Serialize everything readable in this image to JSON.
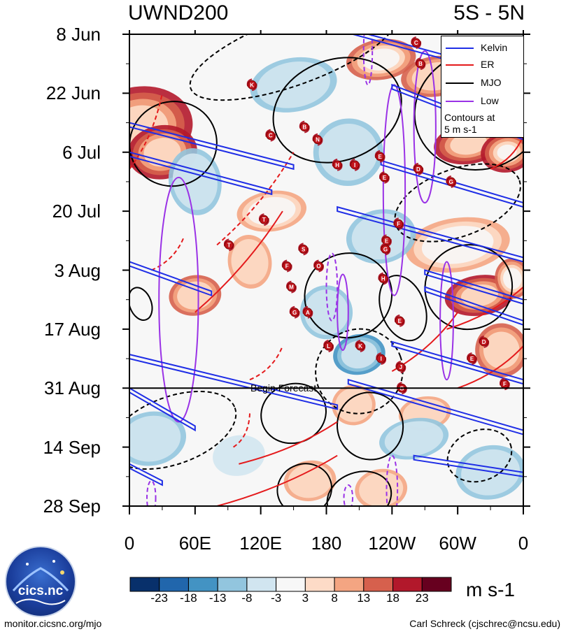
{
  "chart_data": {
    "type": "heatmap",
    "title_left": "UWND200",
    "title_right": "5S - 5N",
    "x_tick_labels": [
      "0",
      "60E",
      "120E",
      "180",
      "120W",
      "60W",
      "0"
    ],
    "x_ticks_deg": [
      0,
      60,
      120,
      180,
      240,
      300,
      360
    ],
    "xlim": [
      0,
      360
    ],
    "y_tick_labels": [
      "8 Jun",
      "22 Jun",
      "6 Jul",
      "20 Jul",
      "3 Aug",
      "17 Aug",
      "31 Aug",
      "14 Sep",
      "28 Sep"
    ],
    "y_ticks_day": [
      0,
      14,
      28,
      42,
      56,
      70,
      84,
      98,
      112
    ],
    "ylim_days": [
      0,
      112
    ],
    "forecast_start_day": 84,
    "forecast_label": "Begin Forecast",
    "colorbar": {
      "labels": [
        "-23",
        "-18",
        "-13",
        "-8",
        "-3",
        "3",
        "8",
        "13",
        "18",
        "23"
      ],
      "colors": [
        "#08306b",
        "#2166ac",
        "#4393c3",
        "#92c5de",
        "#d1e5f0",
        "#f7f7f7",
        "#fddbc7",
        "#f4a582",
        "#d6604d",
        "#b2182b",
        "#67001f"
      ],
      "units": "m s-1"
    },
    "legend": {
      "items": [
        {
          "label": "Kelvin",
          "color": "#1f2ee6"
        },
        {
          "label": "ER",
          "color": "#e41a1c"
        },
        {
          "label": "MJO",
          "color": "#000000"
        },
        {
          "label": "Low",
          "color": "#9a32e6"
        }
      ],
      "note_line1": "Contours at",
      "note_line2": "5 m s-1"
    },
    "wind_features": [
      {
        "lon": 10,
        "day": 22,
        "value": 22,
        "w": 60,
        "h": 12
      },
      {
        "lon": 30,
        "day": 28,
        "value": 20,
        "w": 40,
        "h": 8
      },
      {
        "lon": 60,
        "day": 62,
        "value": 14,
        "w": 30,
        "h": 6
      },
      {
        "lon": 230,
        "day": 6,
        "value": 18,
        "w": 40,
        "h": 6
      },
      {
        "lon": 280,
        "day": 10,
        "value": 16,
        "w": 40,
        "h": 6
      },
      {
        "lon": 310,
        "day": 26,
        "value": 19,
        "w": 40,
        "h": 6
      },
      {
        "lon": 345,
        "day": 28,
        "value": 23,
        "w": 30,
        "h": 6
      },
      {
        "lon": 300,
        "day": 50,
        "value": 13,
        "w": 60,
        "h": 8
      },
      {
        "lon": 320,
        "day": 62,
        "value": 20,
        "w": 40,
        "h": 6
      },
      {
        "lon": 350,
        "day": 58,
        "value": 18,
        "w": 20,
        "h": 6
      },
      {
        "lon": 340,
        "day": 75,
        "value": 14,
        "w": 30,
        "h": 8
      },
      {
        "lon": 130,
        "day": 42,
        "value": 13,
        "w": 40,
        "h": 6
      },
      {
        "lon": 110,
        "day": 54,
        "value": 11,
        "w": 25,
        "h": 8
      },
      {
        "lon": 205,
        "day": 88,
        "value": 12,
        "w": 25,
        "h": 6
      },
      {
        "lon": 270,
        "day": 90,
        "value": 10,
        "w": 30,
        "h": 5
      },
      {
        "lon": 165,
        "day": 106,
        "value": 12,
        "w": 30,
        "h": 6
      },
      {
        "lon": 230,
        "day": 108,
        "value": 11,
        "w": 30,
        "h": 6
      },
      {
        "lon": 150,
        "day": 12,
        "value": -8,
        "w": 50,
        "h": 8
      },
      {
        "lon": 200,
        "day": 28,
        "value": -10,
        "w": 40,
        "h": 10
      },
      {
        "lon": 230,
        "day": 48,
        "value": -12,
        "w": 40,
        "h": 8
      },
      {
        "lon": 60,
        "day": 35,
        "value": -8,
        "w": 30,
        "h": 10
      },
      {
        "lon": 210,
        "day": 76,
        "value": -15,
        "w": 30,
        "h": 6
      },
      {
        "lon": 180,
        "day": 66,
        "value": -10,
        "w": 30,
        "h": 8
      },
      {
        "lon": 20,
        "day": 96,
        "value": -9,
        "w": 40,
        "h": 8
      },
      {
        "lon": 330,
        "day": 104,
        "value": -12,
        "w": 40,
        "h": 8
      },
      {
        "lon": 260,
        "day": 96,
        "value": -10,
        "w": 40,
        "h": 6
      },
      {
        "lon": 100,
        "day": 100,
        "value": -7,
        "w": 30,
        "h": 6
      }
    ],
    "storms": [
      {
        "label": "C",
        "lon": 262,
        "day": 2
      },
      {
        "label": "B",
        "lon": 266,
        "day": 7
      },
      {
        "label": "K",
        "lon": 112,
        "day": 12
      },
      {
        "label": "B",
        "lon": 160,
        "day": 22
      },
      {
        "label": "C",
        "lon": 129,
        "day": 24
      },
      {
        "label": "N",
        "lon": 172,
        "day": 25
      },
      {
        "lon": 229,
        "day": 29,
        "label": "E"
      },
      {
        "label": "H",
        "lon": 190,
        "day": 31
      },
      {
        "label": "I",
        "lon": 206,
        "day": 31
      },
      {
        "label": "D",
        "lon": 264,
        "day": 32
      },
      {
        "label": "E",
        "lon": 233,
        "day": 34
      },
      {
        "label": "G",
        "lon": 294,
        "day": 35
      },
      {
        "label": "T",
        "lon": 123,
        "day": 44
      },
      {
        "label": "F",
        "lon": 246,
        "day": 45
      },
      {
        "label": "E",
        "lon": 235,
        "day": 49
      },
      {
        "label": "G",
        "lon": 234,
        "day": 51
      },
      {
        "label": "T",
        "lon": 91,
        "day": 50
      },
      {
        "label": "S",
        "lon": 159,
        "day": 51
      },
      {
        "label": "F",
        "lon": 144,
        "day": 55
      },
      {
        "label": "O",
        "lon": 173,
        "day": 55
      },
      {
        "label": "H",
        "lon": 232,
        "day": 58
      },
      {
        "label": "M",
        "lon": 148,
        "day": 60
      },
      {
        "label": "G",
        "lon": 151,
        "day": 66
      },
      {
        "label": "A",
        "lon": 163,
        "day": 66
      },
      {
        "label": "E",
        "lon": 247,
        "day": 68
      },
      {
        "label": "D",
        "lon": 324,
        "day": 73
      },
      {
        "label": "L",
        "lon": 182,
        "day": 74
      },
      {
        "label": "K",
        "lon": 211,
        "day": 74
      },
      {
        "label": "I",
        "lon": 230,
        "day": 77
      },
      {
        "label": "E",
        "lon": 313,
        "day": 77
      },
      {
        "label": "J",
        "lon": 248,
        "day": 79
      },
      {
        "label": "F",
        "lon": 343,
        "day": 83
      },
      {
        "label": "G",
        "lon": 249,
        "day": 84
      }
    ],
    "kelvin_waves": [
      {
        "lon1": 190,
        "day1": -2,
        "lon2": 360,
        "day2": 10
      },
      {
        "lon1": 240,
        "day1": 12,
        "lon2": 360,
        "day2": 24
      },
      {
        "lon1": 0,
        "day1": 21,
        "lon2": 150,
        "day2": 31
      },
      {
        "lon1": 0,
        "day1": 28,
        "lon2": 130,
        "day2": 37
      },
      {
        "lon1": 230,
        "day1": 30,
        "lon2": 360,
        "day2": 40
      },
      {
        "lon1": 190,
        "day1": 41,
        "lon2": 360,
        "day2": 53
      },
      {
        "lon1": 0,
        "day1": 54,
        "lon2": 75,
        "day2": 61
      },
      {
        "lon1": 270,
        "day1": 56,
        "lon2": 360,
        "day2": 63
      },
      {
        "lon1": 270,
        "day1": 60,
        "lon2": 360,
        "day2": 68
      },
      {
        "lon1": 0,
        "day1": 76,
        "lon2": 190,
        "day2": 88
      },
      {
        "lon1": 240,
        "day1": 73,
        "lon2": 360,
        "day2": 82
      },
      {
        "lon1": 200,
        "day1": 82,
        "lon2": 360,
        "day2": 94
      },
      {
        "lon1": 0,
        "day1": 84,
        "lon2": 60,
        "day2": 93
      },
      {
        "lon1": 0,
        "day1": 102,
        "lon2": 30,
        "day2": 106
      },
      {
        "lon1": 260,
        "day1": 100,
        "lon2": 360,
        "day2": 104
      }
    ],
    "mjo_contours": [
      {
        "cx": 40,
        "cy": 26,
        "rx": 40,
        "ry": 10,
        "dashed": false
      },
      {
        "cx": 190,
        "cy": 18,
        "rx": 60,
        "ry": 12,
        "dashed": false
      },
      {
        "cx": 320,
        "cy": 18,
        "rx": 60,
        "ry": 14,
        "dashed": false
      },
      {
        "cx": 150,
        "cy": 4,
        "rx": 100,
        "ry": 8,
        "dashed": true
      },
      {
        "cx": 300,
        "cy": 40,
        "rx": 60,
        "ry": 8,
        "dashed": true
      },
      {
        "cx": 310,
        "cy": 60,
        "rx": 40,
        "ry": 10,
        "dashed": false
      },
      {
        "cx": 250,
        "cy": 65,
        "rx": 20,
        "ry": 8,
        "dashed": false
      },
      {
        "cx": 10,
        "cy": 64,
        "rx": 10,
        "ry": 4,
        "dashed": false
      },
      {
        "cx": 200,
        "cy": 62,
        "rx": 40,
        "ry": 10,
        "dashed": false
      },
      {
        "cx": 210,
        "cy": 80,
        "rx": 40,
        "ry": 10,
        "dashed": true
      },
      {
        "cx": 150,
        "cy": 90,
        "rx": 30,
        "ry": 7,
        "dashed": false
      },
      {
        "cx": 220,
        "cy": 93,
        "rx": 30,
        "ry": 8,
        "dashed": false
      },
      {
        "cx": 40,
        "cy": 94,
        "rx": 60,
        "ry": 8,
        "dashed": true
      },
      {
        "cx": 210,
        "cy": 110,
        "rx": 30,
        "ry": 6,
        "dashed": false
      },
      {
        "cx": 160,
        "cy": 108,
        "rx": 25,
        "ry": 6,
        "dashed": false
      },
      {
        "cx": 320,
        "cy": 100,
        "rx": 30,
        "ry": 6,
        "dashed": true
      }
    ],
    "er_contours": [
      {
        "x1": 60,
        "y1": 66,
        "x2": 140,
        "y2": 42,
        "dashed": false
      },
      {
        "x1": 80,
        "y1": 50,
        "x2": 150,
        "y2": 28,
        "dashed": true
      },
      {
        "x1": 0,
        "y1": 32,
        "x2": 30,
        "y2": 14,
        "dashed": true
      },
      {
        "x1": 20,
        "y1": 56,
        "x2": 50,
        "y2": 48,
        "dashed": true
      },
      {
        "x1": 100,
        "y1": 102,
        "x2": 190,
        "y2": 92,
        "dashed": false
      },
      {
        "x1": 80,
        "y1": 112,
        "x2": 190,
        "y2": 100,
        "dashed": false
      },
      {
        "x1": 290,
        "y1": 70,
        "x2": 360,
        "y2": 60,
        "dashed": false
      },
      {
        "x1": 300,
        "y1": 84,
        "x2": 360,
        "y2": 74,
        "dashed": false
      },
      {
        "x1": 330,
        "y1": 32,
        "x2": 360,
        "y2": 24,
        "dashed": false
      },
      {
        "x1": 95,
        "y1": 98,
        "x2": 110,
        "y2": 90,
        "dashed": true
      },
      {
        "x1": 110,
        "y1": 82,
        "x2": 140,
        "y2": 74,
        "dashed": true
      },
      {
        "x1": 240,
        "y1": 80,
        "x2": 300,
        "y2": 66,
        "dashed": false
      }
    ],
    "low_contours": [
      {
        "cx": 45,
        "cy": 63,
        "rx": 18,
        "ry": 29,
        "dashed": false
      },
      {
        "cx": 242,
        "cy": 37,
        "rx": 10,
        "ry": 25,
        "dashed": false
      },
      {
        "cx": 270,
        "cy": 22,
        "rx": 10,
        "ry": 18,
        "dashed": false
      },
      {
        "cx": 290,
        "cy": 68,
        "rx": 6,
        "ry": 14,
        "dashed": false
      },
      {
        "cx": 195,
        "cy": 66,
        "rx": 5,
        "ry": 9,
        "dashed": false
      },
      {
        "cx": 218,
        "cy": 4,
        "rx": 4,
        "ry": 8,
        "dashed": true
      },
      {
        "cx": 185,
        "cy": 60,
        "rx": 5,
        "ry": 8,
        "dashed": true
      },
      {
        "cx": 240,
        "cy": 108,
        "rx": 5,
        "ry": 8,
        "dashed": true
      },
      {
        "cx": 20,
        "cy": 110,
        "rx": 4,
        "ry": 4,
        "dashed": true
      },
      {
        "cx": 200,
        "cy": 110,
        "rx": 4,
        "ry": 3,
        "dashed": true
      }
    ]
  },
  "footer": {
    "left_text": "monitor.cicsnc.org/mjo",
    "right_text": "Carl Schreck (cjschrec@ncsu.edu)",
    "logo_text": "cics.nc"
  }
}
